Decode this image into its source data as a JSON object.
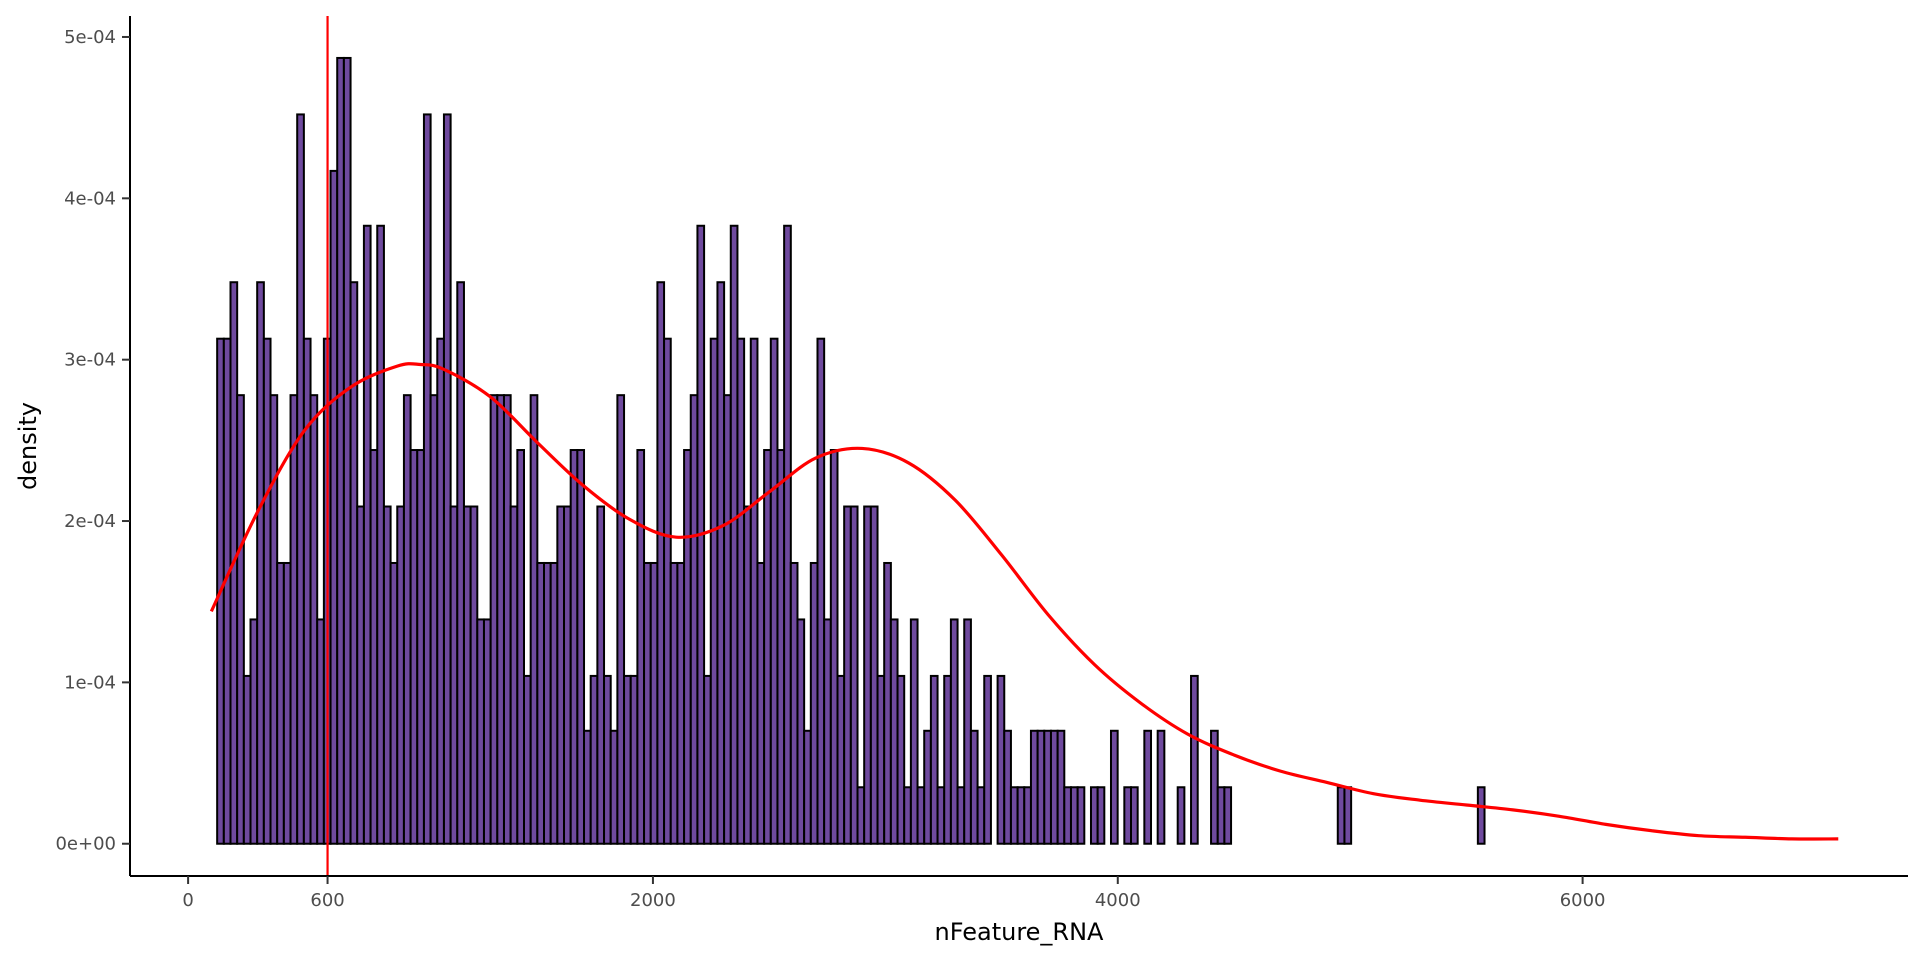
{
  "chart_data": {
    "type": "bar",
    "xlabel": "nFeature_RNA",
    "ylabel": "density",
    "xlim": [
      -250,
      7400
    ],
    "ylim": [
      -2e-05,
      0.000513
    ],
    "x_ticks": [
      {
        "value": 0,
        "label": "0"
      },
      {
        "value": 600,
        "label": "600",
        "color": "#ff0000"
      },
      {
        "value": 2000,
        "label": "2000"
      },
      {
        "value": 4000,
        "label": "4000"
      },
      {
        "value": 6000,
        "label": "6000"
      }
    ],
    "y_ticks": [
      {
        "value": 0,
        "label": "0e+00"
      },
      {
        "value": 0.0001,
        "label": "1e-04"
      },
      {
        "value": 0.0002,
        "label": "2e-04"
      },
      {
        "value": 0.0003,
        "label": "3e-04"
      },
      {
        "value": 0.0004,
        "label": "4e-04"
      },
      {
        "value": 0.0005,
        "label": "5e-04"
      }
    ],
    "bin_start": 125,
    "bin_width": 28.7,
    "bar_color": "#6f4a9e",
    "bar_outline": "#000000",
    "values": [
      0.000313,
      0.000313,
      0.000348,
      0.000278,
      0.000104,
      0.000139,
      0.000348,
      0.000313,
      0.000278,
      0.000174,
      0.000174,
      0.000278,
      0.000452,
      0.000313,
      0.000278,
      0.000139,
      0.000313,
      0.000417,
      0.000487,
      0.000487,
      0.000348,
      0.000209,
      0.000383,
      0.000244,
      0.000383,
      0.000209,
      0.000174,
      0.000209,
      0.000278,
      0.000244,
      0.000244,
      0.000452,
      0.000278,
      0.000313,
      0.000452,
      0.000209,
      0.000348,
      0.000209,
      0.000209,
      0.000139,
      0.000139,
      0.000278,
      0.000278,
      0.000278,
      0.000209,
      0.000244,
      0.000104,
      0.000278,
      0.000174,
      0.000174,
      0.000174,
      0.000209,
      0.000209,
      0.000244,
      0.000244,
      7e-05,
      0.000104,
      0.000209,
      0.000104,
      7e-05,
      0.000278,
      0.000104,
      0.000104,
      0.000244,
      0.000174,
      0.000174,
      0.000348,
      0.000313,
      0.000174,
      0.000174,
      0.000244,
      0.000278,
      0.000383,
      0.000104,
      0.000313,
      0.000348,
      0.000278,
      0.000383,
      0.000313,
      0.000209,
      0.000313,
      0.000174,
      0.000244,
      0.000313,
      0.000244,
      0.000383,
      0.000174,
      0.000139,
      7e-05,
      0.000174,
      0.000313,
      0.000139,
      0.000244,
      0.000104,
      0.000209,
      0.000209,
      3.5e-05,
      0.000209,
      0.000209,
      0.000104,
      0.000174,
      0.000139,
      0.000104,
      3.5e-05,
      0.000139,
      3.5e-05,
      7e-05,
      0.000104,
      3.5e-05,
      0.000104,
      0.000139,
      3.5e-05,
      0.000139,
      7e-05,
      3.5e-05,
      0.000104,
      0,
      0.000104,
      7e-05,
      3.5e-05,
      3.5e-05,
      3.5e-05,
      7e-05,
      7e-05,
      7e-05,
      7e-05,
      7e-05,
      3.5e-05,
      3.5e-05,
      3.5e-05,
      0,
      3.5e-05,
      3.5e-05,
      0,
      7e-05,
      0,
      3.5e-05,
      3.5e-05,
      0,
      7e-05,
      0,
      7e-05,
      0,
      0,
      3.5e-05,
      0,
      0.000104,
      0,
      0,
      7e-05,
      3.5e-05,
      3.5e-05,
      0,
      0,
      0,
      0,
      0,
      0,
      0,
      0,
      0,
      0,
      0,
      0,
      0,
      0,
      0,
      0,
      3.5e-05,
      3.5e-05,
      0,
      0,
      0,
      0,
      0,
      0,
      0,
      0,
      0,
      0,
      0,
      0,
      0,
      0,
      0,
      0,
      0,
      0,
      0,
      3.5e-05,
      0,
      0,
      0,
      0,
      0,
      0,
      0,
      0,
      0,
      0,
      0,
      0,
      0,
      0,
      0,
      0
    ],
    "density_curve": {
      "color": "#ff0000",
      "x": [
        100,
        300,
        500,
        700,
        900,
        1000,
        1100,
        1300,
        1500,
        1700,
        1900,
        2100,
        2300,
        2500,
        2700,
        2900,
        3100,
        3300,
        3500,
        3700,
        3900,
        4100,
        4300,
        4500,
        4700,
        4900,
        5100,
        5300,
        5500,
        5700,
        5900,
        6100,
        6300,
        6500,
        6700,
        6900,
        7100
      ],
      "y": [
        0.000144,
        0.000206,
        0.000256,
        0.000283,
        0.000296,
        0.000297,
        0.000294,
        0.000277,
        0.000249,
        0.000222,
        0.000201,
        0.00019,
        0.000197,
        0.000218,
        0.000239,
        0.000245,
        0.000236,
        0.000213,
        0.000179,
        0.000142,
        0.000111,
        8.7e-05,
        6.8e-05,
        5.5e-05,
        4.5e-05,
        3.8e-05,
        3.1e-05,
        2.7e-05,
        2.4e-05,
        2.1e-05,
        1.7e-05,
        1.2e-05,
        8e-06,
        5e-06,
        4e-06,
        3e-06,
        3e-06
      ]
    },
    "vline": {
      "value": 600,
      "color": "#ff0000"
    },
    "grid": false,
    "legend": "none"
  }
}
